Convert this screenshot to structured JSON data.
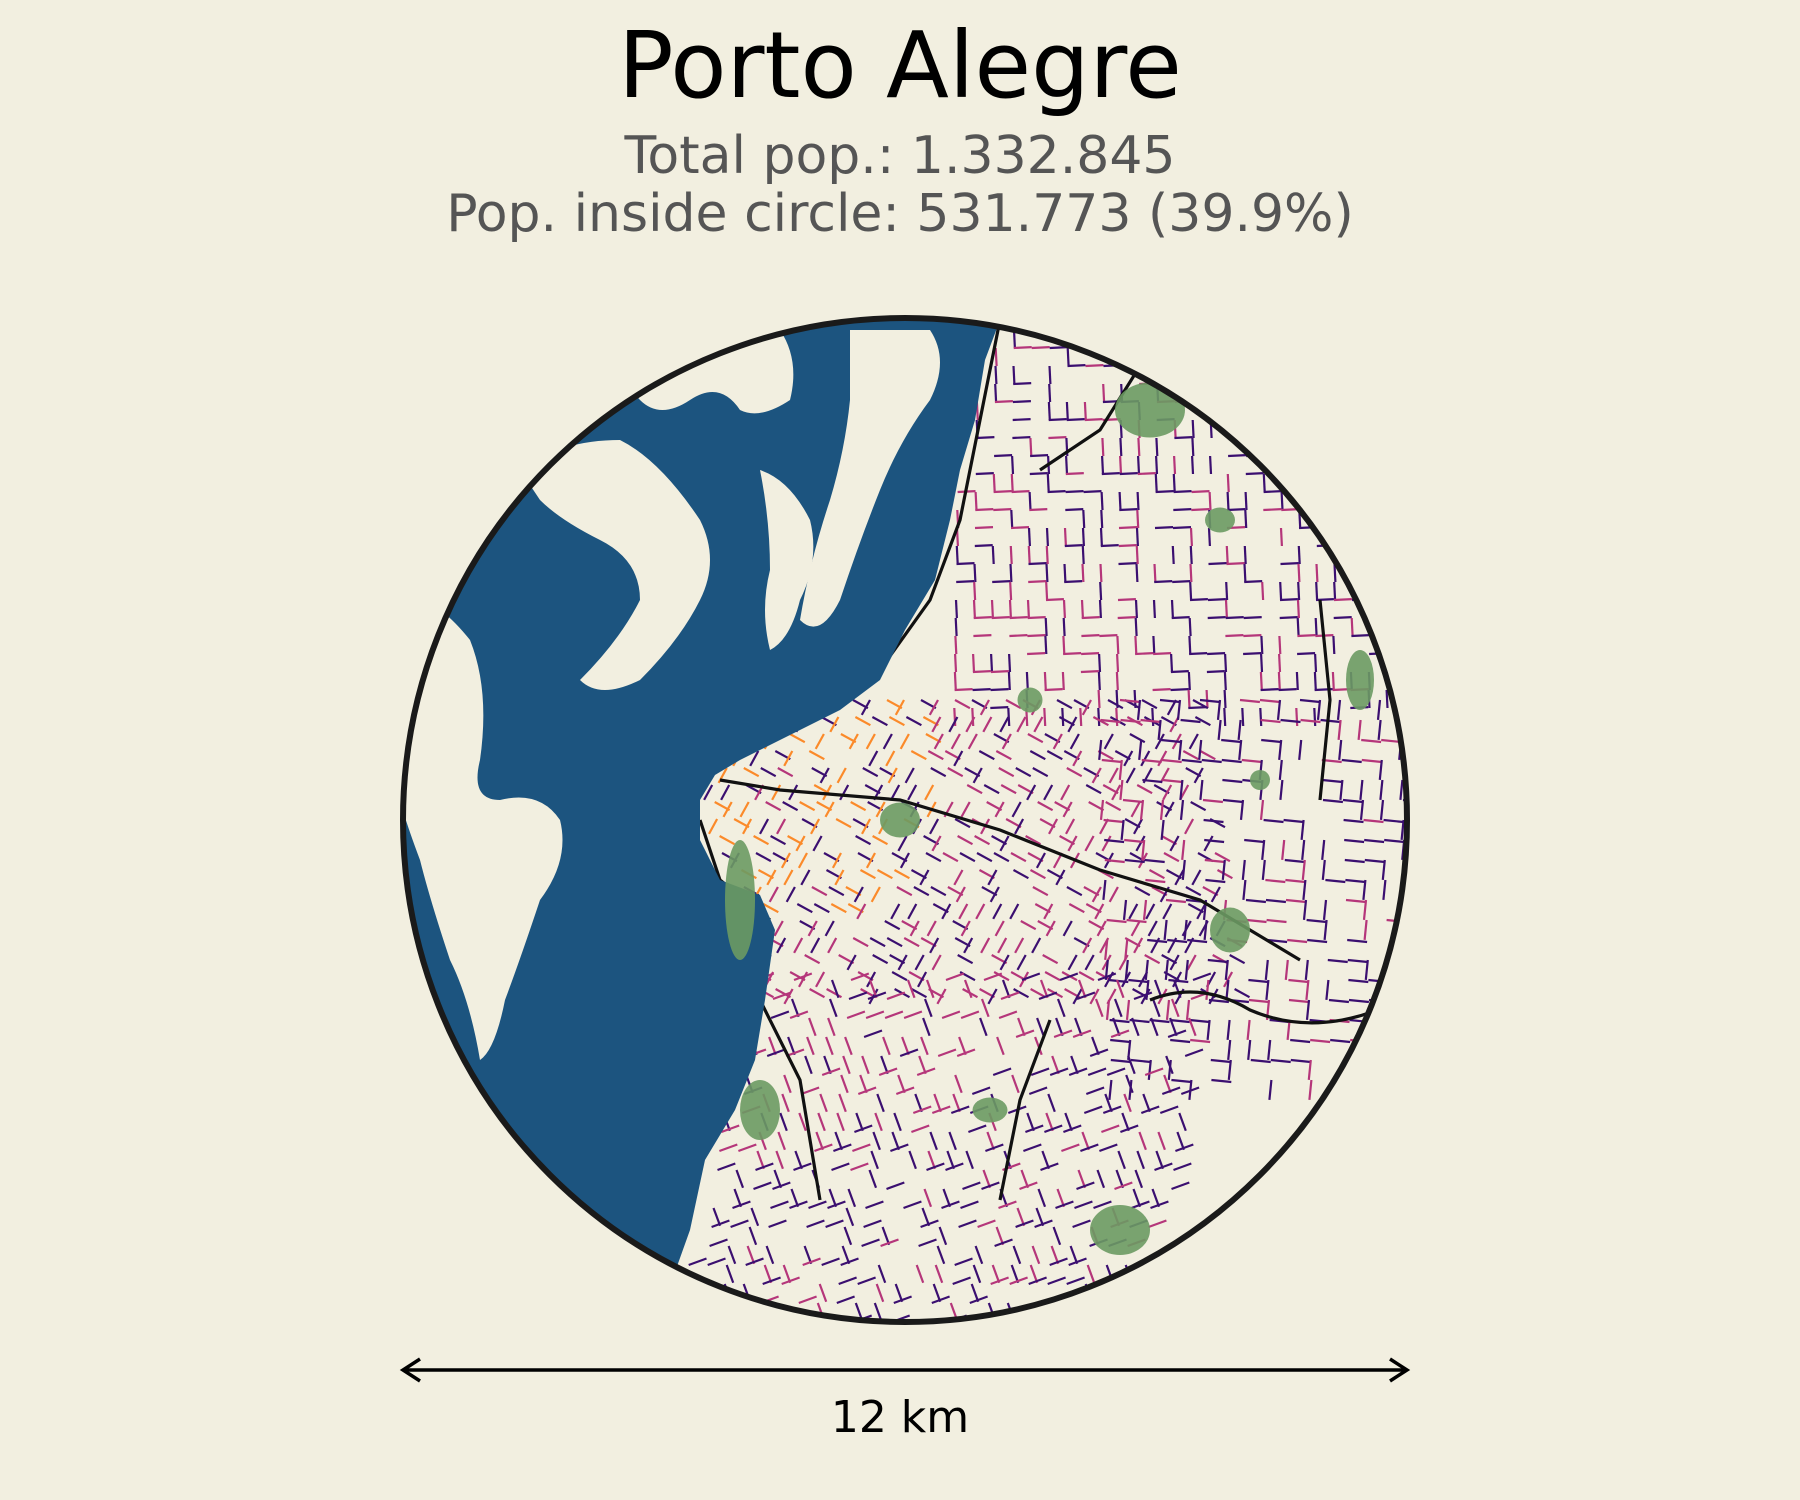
{
  "title": "Porto Alegre",
  "total_pop_line": "Total pop.: 1.332.845",
  "inside_pop_line": "Pop. inside circle: 531.773 (39.9%)",
  "scale_label": "12 km",
  "colors": {
    "background": "#f2efe0",
    "water": "#1c547f",
    "parks": "#6b9a63",
    "roads_major": "#111111",
    "road_density_low": "#3b0f70",
    "road_density_mid": "#b5367a",
    "road_density_high": "#fb8a2a",
    "circle_border": "#1a1a1a"
  },
  "icons": [
    "scale-arrow-left-icon",
    "scale-arrow-right-icon"
  ]
}
